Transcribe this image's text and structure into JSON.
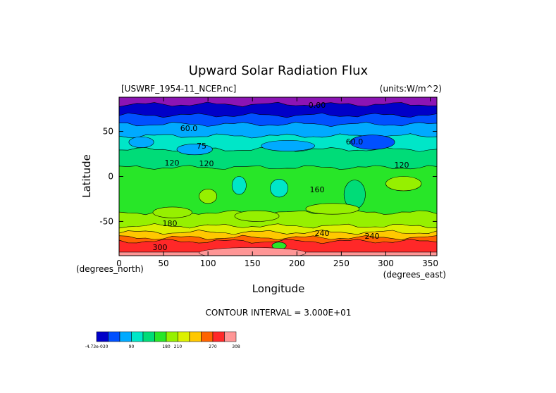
{
  "chart_data": {
    "type": "heatmap",
    "title": "Upward Solar Radiation Flux",
    "file_label": "[USWRF_1954-11_NCEP.nc]",
    "units_label": "(units:W/m^2)",
    "xlabel": "Longitude",
    "ylabel": "Latitude",
    "x_unit": "(degrees_east)",
    "y_unit": "(degrees_north)",
    "xlim": [
      0,
      357.5
    ],
    "ylim": [
      -88,
      88
    ],
    "x_ticks": [
      "0",
      "50",
      "100",
      "150",
      "200",
      "250",
      "300",
      "350"
    ],
    "y_ticks": [
      "50",
      "0",
      "-50"
    ],
    "contour_interval_text": "CONTOUR INTERVAL = 3.000E+01",
    "contour_interval": 30,
    "colorbar": {
      "tick_labels": [
        "-4.73e-030",
        "90",
        "180",
        "210",
        "270",
        "308"
      ],
      "colors": [
        "#0000c8",
        "#0050ff",
        "#00aaff",
        "#00e6c8",
        "#00dc78",
        "#28e628",
        "#96f000",
        "#dcf000",
        "#ffc800",
        "#ff6400",
        "#ff2828",
        "#ff9696"
      ]
    },
    "contour_labels": [
      "0.00",
      "60.0",
      "60.0",
      "75",
      "120",
      "120",
      "120",
      "160",
      "180",
      "240",
      "240",
      "300"
    ],
    "zonal_bands": [
      {
        "lat_from": 80,
        "lat_to": 88,
        "value": 0,
        "color": "#8c14b4"
      },
      {
        "lat_from": 68,
        "lat_to": 80,
        "value": 15,
        "color": "#0000c8"
      },
      {
        "lat_from": 58,
        "lat_to": 68,
        "value": 45,
        "color": "#0050ff"
      },
      {
        "lat_from": 45,
        "lat_to": 58,
        "value": 75,
        "color": "#00aaff"
      },
      {
        "lat_from": 30,
        "lat_to": 45,
        "value": 105,
        "color": "#00e6c8"
      },
      {
        "lat_from": 10,
        "lat_to": 30,
        "value": 120,
        "color": "#00dc78"
      },
      {
        "lat_from": -40,
        "lat_to": 10,
        "value": 135,
        "color": "#28e628"
      },
      {
        "lat_from": -55,
        "lat_to": -40,
        "value": 165,
        "color": "#96f000"
      },
      {
        "lat_from": -62,
        "lat_to": -55,
        "value": 195,
        "color": "#dcf000"
      },
      {
        "lat_from": -68,
        "lat_to": -62,
        "value": 225,
        "color": "#ffc800"
      },
      {
        "lat_from": -72,
        "lat_to": -68,
        "value": 255,
        "color": "#ff6400"
      },
      {
        "lat_from": -84,
        "lat_to": -72,
        "value": 285,
        "color": "#ff2828"
      },
      {
        "lat_from": -88,
        "lat_to": -84,
        "value": 305,
        "color": "#ff9696"
      }
    ],
    "patches": [
      {
        "lon": 25,
        "lat": 38,
        "rx": 14,
        "ry": 3,
        "color": "#00aaff"
      },
      {
        "lon": 85,
        "lat": 30,
        "rx": 20,
        "ry": 3,
        "color": "#00aaff"
      },
      {
        "lon": 190,
        "lat": 34,
        "rx": 30,
        "ry": 3,
        "color": "#00aaff"
      },
      {
        "lon": 285,
        "lat": 38,
        "rx": 25,
        "ry": 4,
        "color": "#0050ff"
      },
      {
        "lon": 180,
        "lat": -13,
        "rx": 10,
        "ry": 5,
        "color": "#00e6c8"
      },
      {
        "lon": 135,
        "lat": -10,
        "rx": 8,
        "ry": 5,
        "color": "#00e6c8"
      },
      {
        "lon": 265,
        "lat": -20,
        "rx": 12,
        "ry": 8,
        "color": "#00dc78"
      },
      {
        "lon": 320,
        "lat": -8,
        "rx": 20,
        "ry": 4,
        "color": "#96f000"
      },
      {
        "lon": 60,
        "lat": -40,
        "rx": 22,
        "ry": 3,
        "color": "#96f000"
      },
      {
        "lon": 155,
        "lat": -44,
        "rx": 25,
        "ry": 3,
        "color": "#96f000"
      },
      {
        "lon": 240,
        "lat": -36,
        "rx": 30,
        "ry": 3,
        "color": "#96f000"
      },
      {
        "lon": 100,
        "lat": -22,
        "rx": 10,
        "ry": 4,
        "color": "#96f000"
      },
      {
        "lon": 180,
        "lat": -77,
        "rx": 8,
        "ry": 2,
        "color": "#28e628"
      },
      {
        "lon": 150,
        "lat": -85,
        "rx": 60,
        "ry": 3,
        "color": "#ff9696"
      }
    ]
  }
}
